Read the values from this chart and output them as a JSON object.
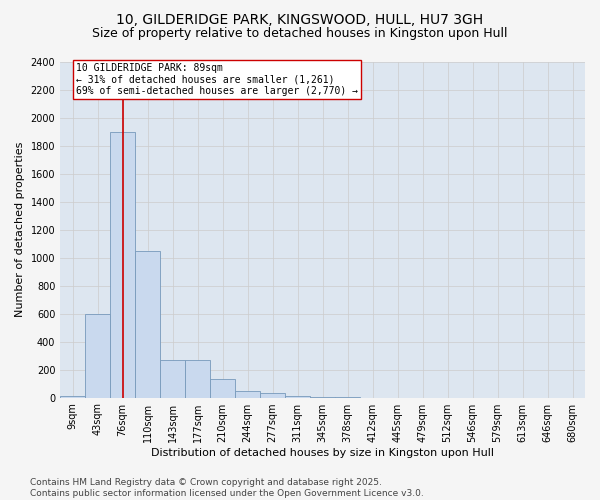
{
  "title_line1": "10, GILDERIDGE PARK, KINGSWOOD, HULL, HU7 3GH",
  "title_line2": "Size of property relative to detached houses in Kingston upon Hull",
  "xlabel": "Distribution of detached houses by size in Kingston upon Hull",
  "ylabel": "Number of detached properties",
  "categories": [
    "9sqm",
    "43sqm",
    "76sqm",
    "110sqm",
    "143sqm",
    "177sqm",
    "210sqm",
    "244sqm",
    "277sqm",
    "311sqm",
    "345sqm",
    "378sqm",
    "412sqm",
    "445sqm",
    "479sqm",
    "512sqm",
    "546sqm",
    "579sqm",
    "613sqm",
    "646sqm",
    "680sqm"
  ],
  "values": [
    10,
    600,
    1900,
    1050,
    265,
    265,
    130,
    50,
    35,
    12,
    5,
    2,
    0,
    0,
    0,
    0,
    0,
    0,
    0,
    0,
    0
  ],
  "bar_color": "#c9d9ee",
  "bar_edge_color": "#7799bb",
  "vline_x_index": 2,
  "vline_color": "#cc0000",
  "annotation_box_text": "10 GILDERIDGE PARK: 89sqm\n← 31% of detached houses are smaller (1,261)\n69% of semi-detached houses are larger (2,770) →",
  "annotation_box_color": "#cc0000",
  "annotation_box_bg": "#ffffff",
  "ylim": [
    0,
    2400
  ],
  "yticks": [
    0,
    200,
    400,
    600,
    800,
    1000,
    1200,
    1400,
    1600,
    1800,
    2000,
    2200,
    2400
  ],
  "grid_color": "#cccccc",
  "bg_color": "#dde6f0",
  "fig_bg_color": "#f5f5f5",
  "footer": "Contains HM Land Registry data © Crown copyright and database right 2025.\nContains public sector information licensed under the Open Government Licence v3.0.",
  "title_fontsize": 10,
  "subtitle_fontsize": 9,
  "axis_label_fontsize": 8,
  "tick_fontsize": 7,
  "footer_fontsize": 6.5,
  "ann_fontsize": 7
}
